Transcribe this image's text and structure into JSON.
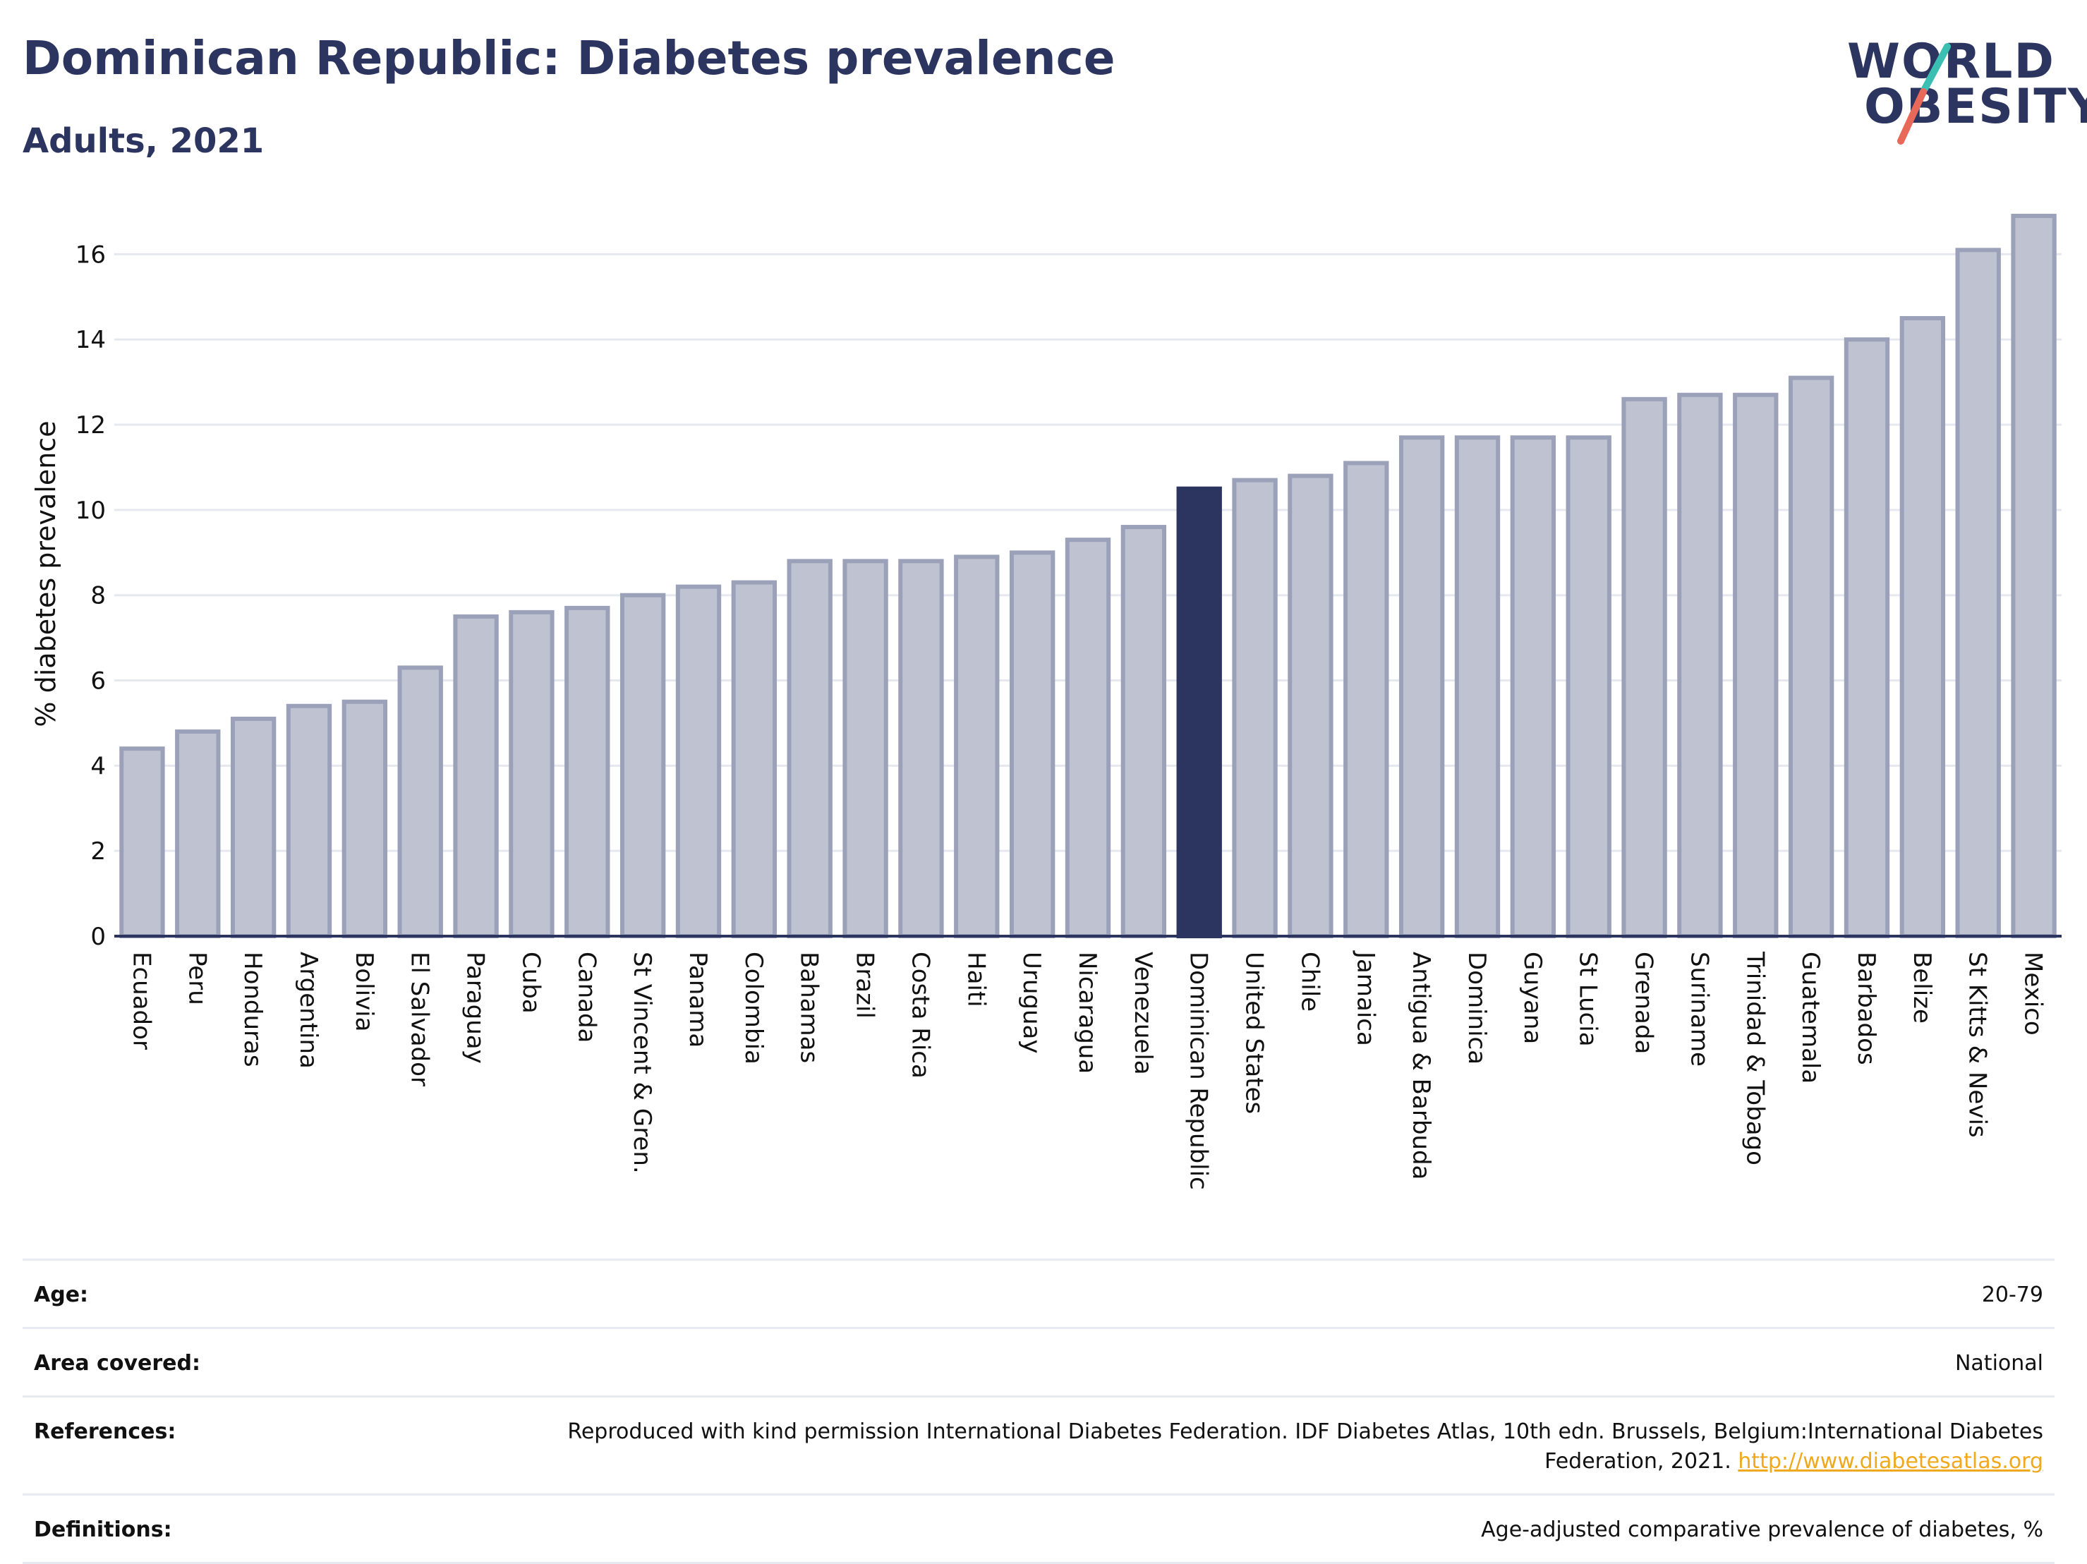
{
  "header": {
    "title": "Dominican Republic: Diabetes prevalence",
    "subtitle": "Adults, 2021"
  },
  "logo": {
    "line1": "WORLD",
    "line2": "OBESITY",
    "accent_teal": "#3bbfb3",
    "accent_red": "#e8695a"
  },
  "colors": {
    "bar": "#bfc3d1",
    "bar_border": "#9ba1b8",
    "highlight": "#2c3560",
    "grid": "#e6e8ef",
    "axis": "#2c3560"
  },
  "chart_data": {
    "type": "bar",
    "ylabel": "% diabetes prevalence",
    "ylim": [
      0,
      17
    ],
    "yticks": [
      0,
      2,
      4,
      6,
      8,
      10,
      12,
      14,
      16
    ],
    "grid": true,
    "highlight": "Dominican Republic",
    "categories": [
      "Ecuador",
      "Peru",
      "Honduras",
      "Argentina",
      "Bolivia",
      "El Salvador",
      "Paraguay",
      "Cuba",
      "Canada",
      "St Vincent & Gren.",
      "Panama",
      "Colombia",
      "Bahamas",
      "Brazil",
      "Costa Rica",
      "Haiti",
      "Uruguay",
      "Nicaragua",
      "Venezuela",
      "Dominican Republic",
      "United States",
      "Chile",
      "Jamaica",
      "Antigua & Barbuda",
      "Dominica",
      "Guyana",
      "St Lucia",
      "Grenada",
      "Suriname",
      "Trinidad & Tobago",
      "Guatemala",
      "Barbados",
      "Belize",
      "St Kitts & Nevis",
      "Mexico"
    ],
    "values": [
      4.4,
      4.8,
      5.1,
      5.4,
      5.5,
      6.3,
      7.5,
      7.6,
      7.7,
      8.0,
      8.2,
      8.3,
      8.8,
      8.8,
      8.8,
      8.9,
      9.0,
      9.3,
      9.6,
      10.5,
      10.7,
      10.8,
      11.1,
      11.7,
      11.7,
      11.7,
      11.7,
      12.6,
      12.7,
      12.7,
      13.1,
      14.0,
      14.5,
      16.1,
      16.9
    ]
  },
  "meta": {
    "age_label": "Age:",
    "age_value": "20-79",
    "area_label": "Area covered:",
    "area_value": "National",
    "references_label": "References:",
    "references_text": "Reproduced with kind permission International Diabetes Federation.  IDF Diabetes Atlas, 10th edn. Brussels, Belgium:International Diabetes Federation, 2021.",
    "references_link": "http://www.diabetesatlas.org",
    "definitions_label": "Definitions:",
    "definitions_value": "Age-adjusted comparative prevalence of diabetes, %"
  }
}
